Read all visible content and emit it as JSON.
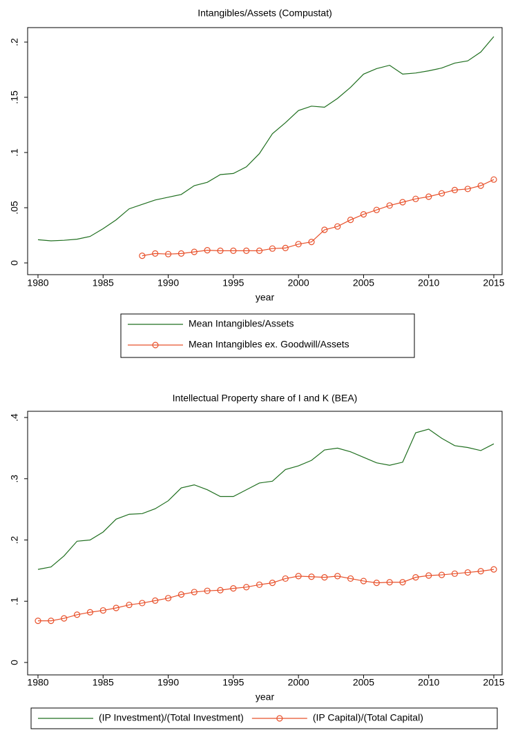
{
  "chart_data": [
    {
      "type": "line",
      "title": "Intangibles/Assets (Compustat)",
      "x_label": "year",
      "x": [
        1980,
        1981,
        1982,
        1983,
        1984,
        1985,
        1986,
        1987,
        1988,
        1989,
        1990,
        1991,
        1992,
        1993,
        1994,
        1995,
        1996,
        1997,
        1998,
        1999,
        2000,
        2001,
        2002,
        2003,
        2004,
        2005,
        2006,
        2007,
        2008,
        2009,
        2010,
        2011,
        2012,
        2013,
        2014,
        2015
      ],
      "xlim": [
        1980,
        2015
      ],
      "xticks": [
        1980,
        1985,
        1990,
        1995,
        2000,
        2005,
        2010,
        2015
      ],
      "ylim": [
        0,
        0.2
      ],
      "yticks": [
        0,
        {
          "value": 0.05,
          "label": ".05"
        },
        {
          "value": 0.1,
          "label": ".1"
        },
        {
          "value": 0.15,
          "label": ".15"
        },
        {
          "value": 0.2,
          "label": ".2"
        }
      ],
      "series": [
        {
          "name": "Mean Intangibles/Assets",
          "color": "#1e6e1e",
          "marker": "none",
          "values": [
            0.021,
            0.02,
            0.0205,
            0.0215,
            0.024,
            0.031,
            0.039,
            0.049,
            0.053,
            0.057,
            0.0595,
            0.062,
            0.07,
            0.073,
            0.08,
            0.081,
            0.087,
            0.099,
            0.117,
            0.127,
            0.138,
            0.142,
            0.141,
            0.149,
            0.159,
            0.171,
            0.176,
            0.179,
            0.171,
            0.172,
            0.174,
            0.1765,
            0.181,
            0.183,
            0.191,
            0.205
          ]
        },
        {
          "name": "Mean Intangibles ex. Goodwill/Assets",
          "color": "#e8502a",
          "marker": "circle",
          "values": [
            null,
            null,
            null,
            null,
            null,
            null,
            null,
            null,
            0.0065,
            0.0085,
            0.008,
            0.0085,
            0.01,
            0.0115,
            0.011,
            0.011,
            0.011,
            0.011,
            0.013,
            0.0135,
            0.017,
            0.019,
            0.03,
            0.033,
            0.039,
            0.044,
            0.048,
            0.052,
            0.055,
            0.058,
            0.06,
            0.063,
            0.066,
            0.067,
            0.07,
            0.0755
          ]
        }
      ]
    },
    {
      "type": "line",
      "title": "Intellectual Property share of I and K (BEA)",
      "x_label": "year",
      "x": [
        1980,
        1981,
        1982,
        1983,
        1984,
        1985,
        1986,
        1987,
        1988,
        1989,
        1990,
        1991,
        1992,
        1993,
        1994,
        1995,
        1996,
        1997,
        1998,
        1999,
        2000,
        2001,
        2002,
        2003,
        2004,
        2005,
        2006,
        2007,
        2008,
        2009,
        2010,
        2011,
        2012,
        2013,
        2014,
        2015
      ],
      "xlim": [
        1980,
        2015
      ],
      "xticks": [
        1980,
        1985,
        1990,
        1995,
        2000,
        2005,
        2010,
        2015
      ],
      "ylim": [
        0,
        0.4
      ],
      "yticks": [
        0,
        {
          "value": 0.1,
          "label": ".1"
        },
        {
          "value": 0.2,
          "label": ".2"
        },
        {
          "value": 0.3,
          "label": ".3"
        },
        {
          "value": 0.4,
          "label": ".4"
        }
      ],
      "series": [
        {
          "name": "(IP Investment)/(Total Investment)",
          "color": "#1e6e1e",
          "marker": "none",
          "values": [
            0.152,
            0.156,
            0.174,
            0.198,
            0.2,
            0.213,
            0.234,
            0.242,
            0.243,
            0.251,
            0.264,
            0.285,
            0.29,
            0.282,
            0.271,
            0.271,
            0.282,
            0.293,
            0.296,
            0.315,
            0.321,
            0.33,
            0.347,
            0.35,
            0.344,
            0.335,
            0.326,
            0.322,
            0.327,
            0.375,
            0.381,
            0.366,
            0.354,
            0.351,
            0.346,
            0.357
          ]
        },
        {
          "name": "(IP Capital)/(Total Capital)",
          "color": "#e8502a",
          "marker": "circle",
          "values": [
            0.068,
            0.068,
            0.072,
            0.078,
            0.082,
            0.085,
            0.089,
            0.094,
            0.097,
            0.101,
            0.105,
            0.111,
            0.115,
            0.117,
            0.118,
            0.121,
            0.123,
            0.127,
            0.13,
            0.137,
            0.141,
            0.14,
            0.139,
            0.141,
            0.137,
            0.133,
            0.13,
            0.131,
            0.131,
            0.139,
            0.142,
            0.143,
            0.145,
            0.147,
            0.149,
            0.152
          ]
        }
      ]
    }
  ]
}
